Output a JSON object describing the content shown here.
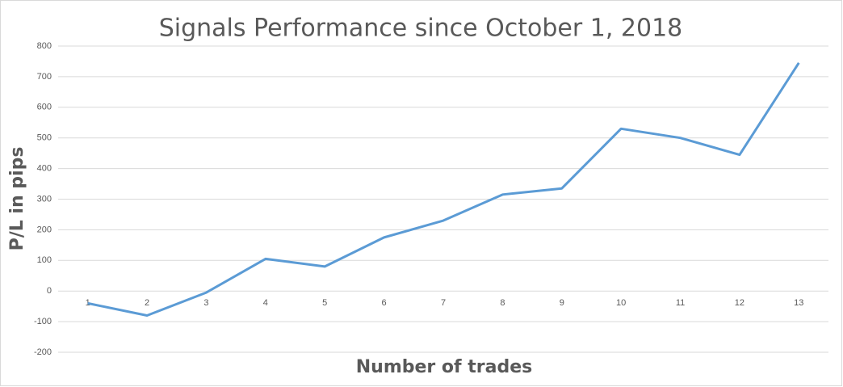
{
  "chart_data": {
    "type": "line",
    "title": "Signals Performance since October 1, 2018",
    "x_label": "Number of trades",
    "y_label": "P/L in pips",
    "categories": [
      1,
      2,
      3,
      4,
      5,
      6,
      7,
      8,
      9,
      10,
      11,
      12,
      13
    ],
    "values": [
      -40,
      -80,
      -5,
      105,
      80,
      175,
      230,
      315,
      335,
      530,
      500,
      445,
      745
    ],
    "color": "#5b9bd5",
    "ylim": [
      -200,
      800
    ],
    "yticks": [
      -200,
      -100,
      0,
      100,
      200,
      300,
      400,
      500,
      600,
      700,
      800
    ],
    "grid": true
  }
}
